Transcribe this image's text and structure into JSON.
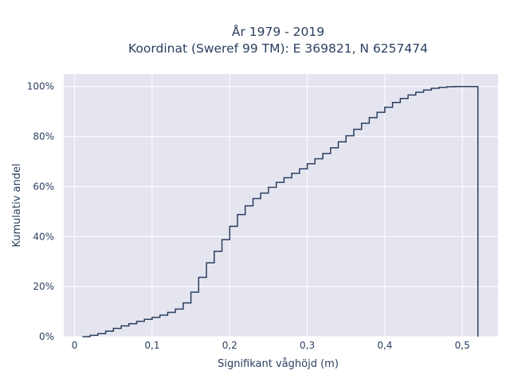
{
  "chart_data": {
    "type": "line",
    "line_shape": "step-cdf",
    "title_lines": [
      "År 1979 - 2019",
      "Koordinat (Sweref 99 TM): E 369821, N 6257474"
    ],
    "xlabel": "Signifikant våghöjd (m)",
    "ylabel": "Kumulativ andel",
    "xlim": [
      -0.014,
      0.546
    ],
    "ylim": [
      0,
      1.05
    ],
    "x_ticks": [
      0,
      0.1,
      0.2,
      0.3,
      0.4,
      0.5
    ],
    "x_tick_labels": [
      "0",
      "0,1",
      "0,2",
      "0,3",
      "0,4",
      "0,5"
    ],
    "y_ticks": [
      0,
      0.2,
      0.4,
      0.6,
      0.8,
      1.0
    ],
    "y_tick_labels": [
      "0%",
      "20%",
      "40%",
      "60%",
      "80%",
      "100%"
    ],
    "grid": true,
    "series": [
      {
        "x": [
          0.01,
          0.02,
          0.03,
          0.04,
          0.05,
          0.06,
          0.07,
          0.08,
          0.09,
          0.1,
          0.11,
          0.12,
          0.13,
          0.14,
          0.15,
          0.16,
          0.17,
          0.18,
          0.19,
          0.2,
          0.21,
          0.22,
          0.23,
          0.24,
          0.25,
          0.26,
          0.27,
          0.28,
          0.29,
          0.3,
          0.31,
          0.32,
          0.33,
          0.34,
          0.35,
          0.36,
          0.37,
          0.38,
          0.39,
          0.4,
          0.41,
          0.42,
          0.43,
          0.44,
          0.45,
          0.46,
          0.47,
          0.48,
          0.49,
          0.5,
          0.51,
          0.52
        ],
        "y": [
          0.0,
          0.005,
          0.012,
          0.022,
          0.033,
          0.043,
          0.052,
          0.061,
          0.069,
          0.077,
          0.086,
          0.097,
          0.11,
          0.135,
          0.178,
          0.237,
          0.295,
          0.341,
          0.388,
          0.441,
          0.488,
          0.523,
          0.552,
          0.574,
          0.597,
          0.617,
          0.635,
          0.653,
          0.671,
          0.691,
          0.711,
          0.732,
          0.755,
          0.779,
          0.803,
          0.829,
          0.853,
          0.876,
          0.897,
          0.917,
          0.936,
          0.952,
          0.966,
          0.977,
          0.986,
          0.993,
          0.997,
          0.999,
          1.0,
          1.0,
          1.0,
          1.0
        ],
        "line_color": "#2a3f5f"
      }
    ],
    "style": {
      "plot_bg": "#e5e5f0",
      "grid_color": "#ffffff",
      "text_color": "#2a3f5f"
    }
  }
}
